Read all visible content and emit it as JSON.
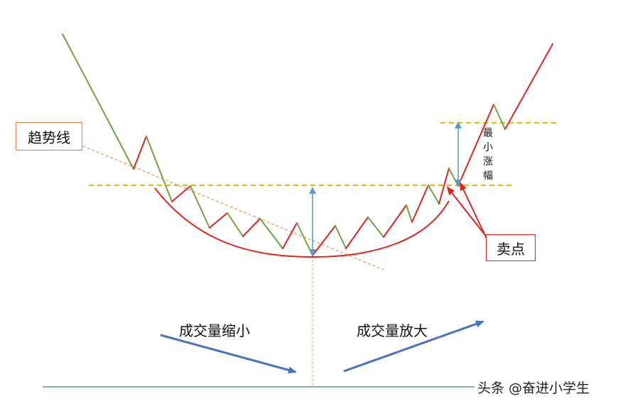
{
  "labels": {
    "trend_line": "趋势线",
    "sell_point": "卖点",
    "min_rise": "最小涨幅",
    "volume_shrink": "成交量缩小",
    "volume_expand": "成交量放大",
    "watermark": "头条 @奋进小学生"
  },
  "colors": {
    "green_segment": "#70a33c",
    "red_segment": "#e0231c",
    "dashed_level": "#f0b400",
    "trend_dashed": "#f0904a",
    "arrow_blue": "#5b9bd5",
    "volume_arrow": "#4472c4",
    "baseline": "#3a8a5a"
  }
}
